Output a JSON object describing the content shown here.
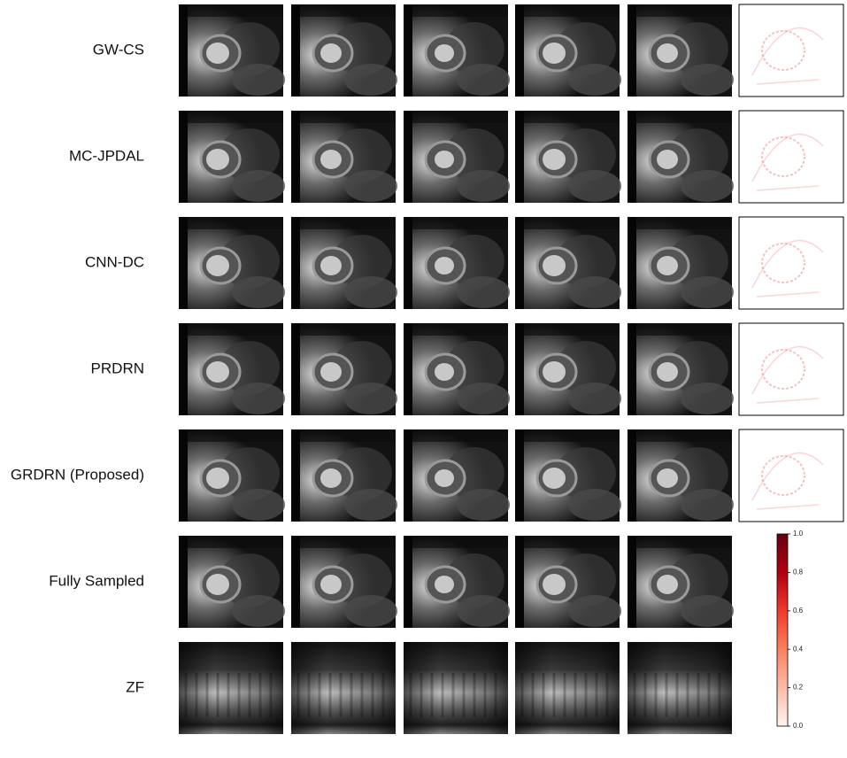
{
  "rows": [
    {
      "label": "GW-CS",
      "error_map": true
    },
    {
      "label": "MC-JPDAL",
      "error_map": true
    },
    {
      "label": "CNN-DC",
      "error_map": true
    },
    {
      "label": "PRDRN",
      "error_map": true
    },
    {
      "label": "GRDRN (Proposed)",
      "error_map": true
    },
    {
      "label": "Fully Sampled",
      "error_map": false
    },
    {
      "label": "ZF",
      "error_map": false,
      "aliased": true
    }
  ],
  "colorbar": {
    "range": [
      0,
      1
    ],
    "ticks": [
      {
        "value": 0,
        "label": "0.0"
      },
      {
        "value": 0.2,
        "label": "0.2"
      },
      {
        "value": 0.4,
        "label": "0.4"
      },
      {
        "value": 0.6,
        "label": "0.6"
      },
      {
        "value": 0.8,
        "label": "0.8"
      },
      {
        "value": 1,
        "label": "1.0"
      }
    ]
  }
}
